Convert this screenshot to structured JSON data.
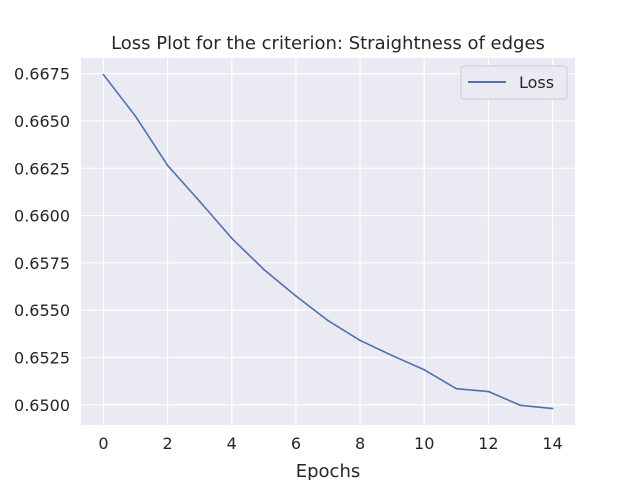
{
  "chart_data": {
    "type": "line",
    "title": "Loss Plot for the criterion: Straightness of edges",
    "xlabel": "Epochs",
    "ylabel": "",
    "x": [
      0,
      1,
      2,
      3,
      4,
      5,
      6,
      7,
      8,
      9,
      10,
      11,
      12,
      13,
      14
    ],
    "series": [
      {
        "name": "Loss",
        "values": [
          0.66745,
          0.66525,
          0.66265,
          0.66075,
          0.6588,
          0.65715,
          0.65575,
          0.65445,
          0.6534,
          0.6526,
          0.65185,
          0.65085,
          0.6507,
          0.64997,
          0.6498
        ],
        "color": "#4c72b0"
      }
    ],
    "xlim": [
      -0.7,
      14.7
    ],
    "ylim": [
      0.64893,
      0.66833
    ],
    "xticks": [
      0,
      2,
      4,
      6,
      8,
      10,
      12,
      14
    ],
    "xtick_labels": [
      "0",
      "2",
      "4",
      "6",
      "8",
      "10",
      "12",
      "14"
    ],
    "yticks": [
      0.65,
      0.6525,
      0.655,
      0.6575,
      0.66,
      0.6625,
      0.665,
      0.6675
    ],
    "ytick_labels": [
      "0.6500",
      "0.6525",
      "0.6550",
      "0.6575",
      "0.6600",
      "0.6625",
      "0.6650",
      "0.6675"
    ],
    "grid": true,
    "legend_position": "upper right",
    "colors": {
      "plot_background": "#eaeaf2",
      "grid": "#ffffff",
      "text": "#262626",
      "legend_border": "#cccccc"
    }
  }
}
